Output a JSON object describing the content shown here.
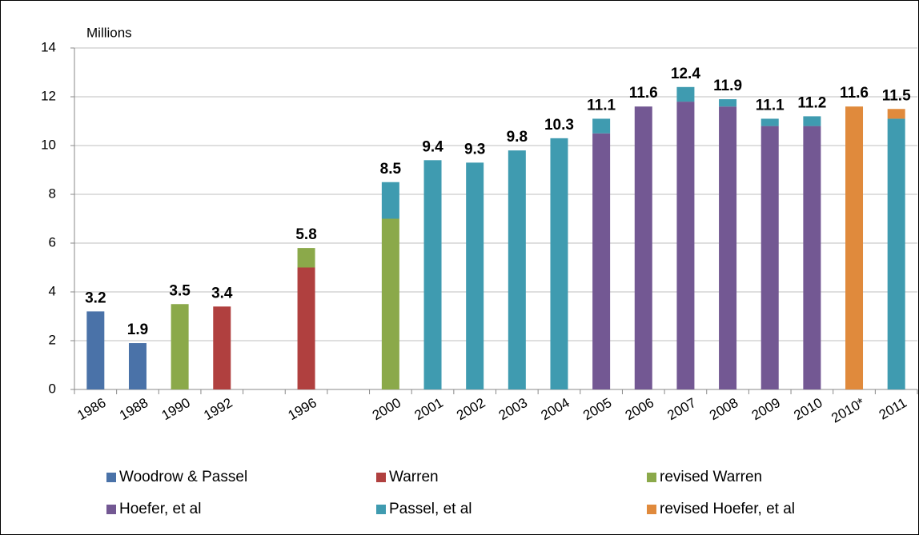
{
  "chart_data": {
    "type": "bar",
    "stacked": true,
    "y_unit_label": "Millions",
    "categories": [
      "1986",
      "1988",
      "1990",
      "1992",
      null,
      "1996",
      null,
      "2000",
      "2001",
      "2002",
      "2003",
      "2004",
      "2005",
      "2006",
      "2007",
      "2008",
      "2009",
      "2010",
      "2010*",
      "2011"
    ],
    "series": [
      {
        "name": "Woodrow & Passel",
        "color": "#4a72a8",
        "values": [
          3.2,
          1.9,
          null,
          null,
          null,
          null,
          null,
          null,
          null,
          null,
          null,
          null,
          null,
          null,
          null,
          null,
          null,
          null,
          null,
          null
        ]
      },
      {
        "name": "Warren",
        "color": "#b0403f",
        "values": [
          null,
          null,
          null,
          3.4,
          null,
          5.0,
          null,
          null,
          null,
          null,
          null,
          null,
          null,
          null,
          null,
          null,
          null,
          null,
          null,
          null
        ]
      },
      {
        "name": "revised Warren",
        "color": "#8ba94a",
        "values": [
          null,
          null,
          3.5,
          null,
          null,
          0.8,
          null,
          7.0,
          null,
          null,
          null,
          null,
          null,
          null,
          null,
          null,
          null,
          null,
          null,
          null
        ]
      },
      {
        "name": "Hoefer, et al",
        "color": "#735893",
        "values": [
          null,
          null,
          null,
          null,
          null,
          null,
          null,
          null,
          null,
          null,
          null,
          null,
          10.5,
          11.6,
          11.8,
          11.6,
          10.8,
          10.8,
          null,
          null
        ]
      },
      {
        "name": "Passel, et al",
        "color": "#3f9bb0",
        "values": [
          null,
          null,
          null,
          null,
          null,
          null,
          null,
          1.5,
          9.4,
          9.3,
          9.8,
          10.3,
          0.6,
          null,
          0.6,
          0.3,
          0.3,
          0.4,
          null,
          11.1
        ]
      },
      {
        "name": "revised Hoefer, et al",
        "color": "#e08a3c",
        "values": [
          null,
          null,
          null,
          null,
          null,
          null,
          null,
          null,
          null,
          null,
          null,
          null,
          null,
          null,
          null,
          null,
          null,
          null,
          11.6,
          0.4
        ]
      }
    ],
    "totals": [
      3.2,
      1.9,
      3.5,
      3.4,
      null,
      5.8,
      null,
      8.5,
      9.4,
      9.3,
      9.8,
      10.3,
      11.1,
      11.6,
      12.4,
      11.9,
      11.1,
      11.2,
      11.6,
      11.5
    ],
    "ylim": [
      0,
      14
    ],
    "yticks": [
      0,
      2,
      4,
      6,
      8,
      10,
      12,
      14
    ],
    "grid": true
  }
}
